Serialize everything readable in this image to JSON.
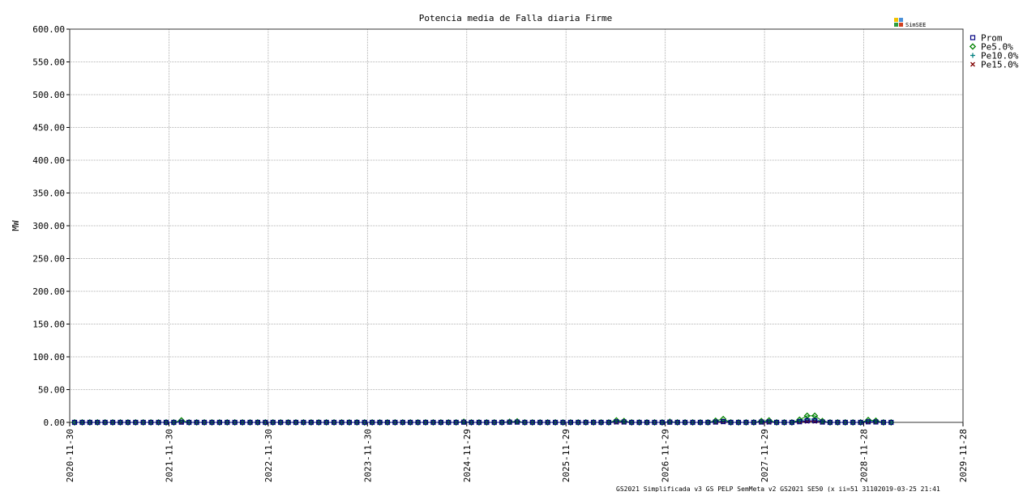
{
  "chart_data": {
    "type": "line",
    "title": "Potencia media de Falla diaria Firme",
    "ylabel": "MW",
    "xlabel": "",
    "ylim": [
      0,
      600
    ],
    "yticks": [
      "0.00",
      "50.00",
      "100.00",
      "150.00",
      "200.00",
      "250.00",
      "300.00",
      "350.00",
      "400.00",
      "450.00",
      "500.00",
      "550.00",
      "600.00"
    ],
    "xticks": [
      "2020-11-30",
      "2021-11-30",
      "2022-11-30",
      "2023-11-30",
      "2024-11-29",
      "2025-11-29",
      "2026-11-29",
      "2027-11-29",
      "2028-11-28",
      "2029-11-28"
    ],
    "grid": true,
    "legend_position": "right",
    "brand": "SimSEE",
    "footer": "GS2021_Simplificada_v3_GS_PELP_SemMeta_v2 GS2021 SE50 (x ii=51 31102019-03-25 21:41",
    "series": [
      {
        "name": "Prom",
        "color": "#000080",
        "marker": "square",
        "values": [
          0,
          0,
          0,
          0,
          0,
          0,
          0,
          0,
          0,
          0,
          0,
          0,
          0,
          0,
          0.3,
          0,
          0,
          0,
          0,
          0,
          0,
          0,
          0,
          0,
          0,
          0,
          0,
          0,
          0,
          0,
          0,
          0,
          0,
          0,
          0,
          0,
          0,
          0,
          0,
          0,
          0,
          0,
          0,
          0,
          0,
          0,
          0,
          0,
          0,
          0,
          0,
          0.3,
          0,
          0,
          0,
          0,
          0,
          0.3,
          0.4,
          0,
          0,
          0,
          0,
          0,
          0,
          0,
          0,
          0,
          0,
          0,
          0,
          0.8,
          0.6,
          0,
          0,
          0,
          0,
          0,
          0.3,
          0,
          0,
          0,
          0,
          0,
          0.5,
          1.2,
          0,
          0,
          0,
          0,
          0.5,
          0.7,
          0,
          0,
          0,
          1,
          2.5,
          2.5,
          0.5,
          0,
          0,
          0,
          0,
          0,
          0.8,
          0.6,
          0,
          0
        ]
      },
      {
        "name": "Pe5.0%",
        "color": "#008000",
        "marker": "diamond",
        "values": [
          0,
          0,
          0,
          0,
          0,
          0,
          0,
          0,
          0,
          0,
          0,
          0,
          0,
          0,
          3,
          0,
          0,
          0,
          0,
          0,
          0,
          0,
          0,
          0,
          0,
          0,
          0,
          0,
          0,
          0,
          0,
          0,
          0,
          0,
          0,
          0,
          0,
          0,
          0,
          0,
          0,
          0,
          0,
          0,
          0,
          0,
          0,
          0,
          0,
          0,
          0,
          1,
          0,
          0,
          0,
          0,
          0,
          1,
          1.5,
          0,
          0,
          0,
          0,
          0,
          0,
          0,
          0,
          0,
          0,
          0,
          0,
          3,
          2,
          0,
          0,
          0,
          0,
          0,
          1,
          0,
          0,
          0,
          0,
          0,
          2.5,
          5,
          0,
          0,
          0,
          0,
          2,
          3,
          0,
          0,
          0,
          4,
          10,
          10,
          2,
          0,
          0,
          0,
          0,
          0,
          3.5,
          2.5,
          0,
          0
        ]
      },
      {
        "name": "Pe10.0%",
        "color": "#008080",
        "marker": "plus",
        "values": [
          0,
          0,
          0,
          0,
          0,
          0,
          0,
          0,
          0,
          0,
          0,
          0,
          0,
          0,
          0.5,
          0,
          0,
          0,
          0,
          0,
          0,
          0,
          0,
          0,
          0,
          0,
          0,
          0,
          0,
          0,
          0,
          0,
          0,
          0,
          0,
          0,
          0,
          0,
          0,
          0,
          0,
          0,
          0,
          0,
          0,
          0,
          0,
          0,
          0,
          0,
          0,
          0.5,
          0,
          0,
          0,
          0,
          0,
          0.5,
          0.5,
          0,
          0,
          0,
          0,
          0,
          0,
          0,
          0,
          0,
          0,
          0,
          0,
          1,
          1,
          0,
          0,
          0,
          0,
          0,
          0.5,
          0,
          0,
          0,
          0,
          0,
          1,
          2,
          0,
          0,
          0,
          0,
          1,
          1,
          0,
          0,
          0,
          2,
          5,
          5,
          1,
          0,
          0,
          0,
          0,
          0,
          1.5,
          1,
          0,
          0
        ]
      },
      {
        "name": "Pe15.0%",
        "color": "#800000",
        "marker": "x",
        "values": [
          0,
          0,
          0,
          0,
          0,
          0,
          0,
          0,
          0,
          0,
          0,
          0,
          0,
          0,
          0,
          0,
          0,
          0,
          0,
          0,
          0,
          0,
          0,
          0,
          0,
          0,
          0,
          0,
          0,
          0,
          0,
          0,
          0,
          0,
          0,
          0,
          0,
          0,
          0,
          0,
          0,
          0,
          0,
          0,
          0,
          0,
          0,
          0,
          0,
          0,
          0,
          0,
          0,
          0,
          0,
          0,
          0,
          0,
          0,
          0,
          0,
          0,
          0,
          0,
          0,
          0,
          0,
          0,
          0,
          0,
          0,
          0,
          0,
          0,
          0,
          0,
          0,
          0,
          0,
          0,
          0,
          0,
          0,
          0,
          0,
          0.5,
          0,
          0,
          0,
          0,
          0,
          0,
          0,
          0,
          0,
          0.5,
          1.5,
          1.5,
          0,
          0,
          0,
          0,
          0,
          0,
          0.5,
          0.5,
          0,
          0
        ]
      }
    ]
  }
}
